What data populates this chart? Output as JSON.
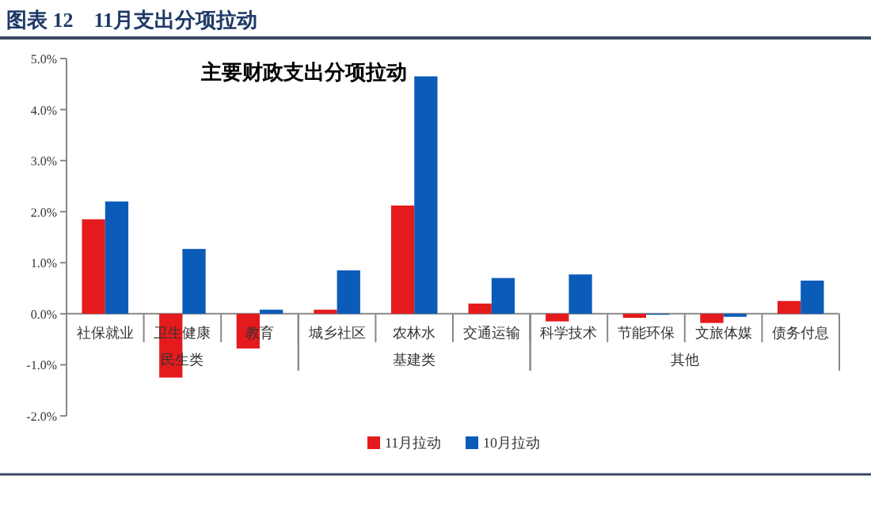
{
  "chart_data": {
    "type": "bar",
    "title": "图表 12　11月支出分项拉动",
    "subtitle": "主要财政支出分项拉动",
    "categories": [
      "社保就业",
      "卫生健康",
      "教育",
      "城乡社区",
      "农林水",
      "交通运输",
      "科学技术",
      "节能环保",
      "文旅体媒",
      "债务付息"
    ],
    "annotations": [
      "民生类",
      "基建类",
      "其他"
    ],
    "series": [
      {
        "name": "11月拉动",
        "color": "#e41a1c",
        "values": [
          1.85,
          -1.25,
          -0.68,
          0.08,
          2.12,
          0.2,
          -0.15,
          -0.08,
          -0.18,
          0.25
        ]
      },
      {
        "name": "10月拉动",
        "color": "#0a5cb8",
        "values": [
          2.2,
          1.27,
          0.08,
          0.85,
          4.65,
          0.7,
          0.77,
          -0.02,
          -0.06,
          0.65
        ]
      }
    ],
    "ylim": [
      -2,
      5
    ],
    "yticks": [
      {
        "value": -2,
        "label": "-2.0%"
      },
      {
        "value": -1,
        "label": "-1.0%"
      },
      {
        "value": 0,
        "label": "0.0%"
      },
      {
        "value": 1,
        "label": "1.0%"
      },
      {
        "value": 2,
        "label": "2.0%"
      },
      {
        "value": 3,
        "label": "3.0%"
      },
      {
        "value": 4,
        "label": "4.0%"
      },
      {
        "value": 5,
        "label": "5.0%"
      }
    ],
    "grid": false,
    "legend": "bottom"
  }
}
